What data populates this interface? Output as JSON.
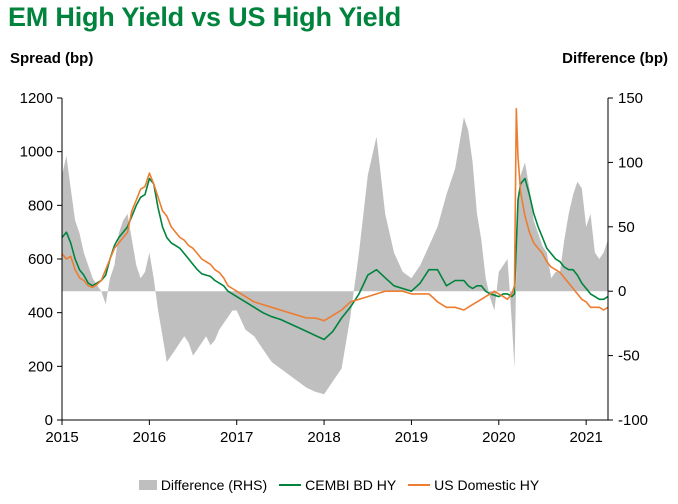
{
  "chart_data": {
    "type": "line",
    "title": "EM High Yield vs US High Yield",
    "ylabel_left": "Spread (bp)",
    "ylabel_right": "Difference (bp)",
    "ylim_left": [
      0,
      1200
    ],
    "ylim_right": [
      -100,
      150
    ],
    "yticks_left": [
      "1200",
      "1000",
      "800",
      "600",
      "400",
      "200",
      "0"
    ],
    "yticks_right": [
      "150",
      "100",
      "50",
      "0",
      "-50",
      "-100"
    ],
    "xlim": [
      2015.0,
      2021.25
    ],
    "x_tick_labels": [
      "2015",
      "2016",
      "2017",
      "2018",
      "2019",
      "2020",
      "2021"
    ],
    "x_tick_values": [
      2015,
      2016,
      2017,
      2018,
      2019,
      2020,
      2021
    ],
    "series": [
      {
        "name": "Difference (RHS)",
        "axis": "right",
        "style": "area",
        "color": "#BFBFBF",
        "x": [
          2015.0,
          2015.05,
          2015.1,
          2015.15,
          2015.2,
          2015.25,
          2015.3,
          2015.35,
          2015.4,
          2015.45,
          2015.5,
          2015.55,
          2015.6,
          2015.65,
          2015.7,
          2015.75,
          2015.8,
          2015.85,
          2015.9,
          2015.95,
          2016.0,
          2016.05,
          2016.1,
          2016.15,
          2016.2,
          2016.25,
          2016.3,
          2016.35,
          2016.4,
          2016.45,
          2016.5,
          2016.55,
          2016.6,
          2016.65,
          2016.7,
          2016.75,
          2016.8,
          2016.85,
          2016.9,
          2016.95,
          2017.0,
          2017.1,
          2017.2,
          2017.3,
          2017.4,
          2017.5,
          2017.6,
          2017.7,
          2017.8,
          2017.9,
          2018.0,
          2018.1,
          2018.2,
          2018.3,
          2018.4,
          2018.5,
          2018.6,
          2018.7,
          2018.8,
          2018.9,
          2019.0,
          2019.1,
          2019.2,
          2019.3,
          2019.4,
          2019.5,
          2019.6,
          2019.65,
          2019.7,
          2019.75,
          2019.8,
          2019.85,
          2019.9,
          2019.95,
          2020.0,
          2020.05,
          2020.1,
          2020.15,
          2020.18,
          2020.2,
          2020.22,
          2020.25,
          2020.3,
          2020.35,
          2020.4,
          2020.45,
          2020.5,
          2020.55,
          2020.6,
          2020.65,
          2020.7,
          2020.75,
          2020.8,
          2020.85,
          2020.9,
          2020.95,
          2021.0,
          2021.05,
          2021.1,
          2021.15,
          2021.2,
          2021.25
        ],
        "values": [
          90,
          105,
          80,
          55,
          45,
          30,
          20,
          10,
          5,
          0,
          -10,
          10,
          20,
          45,
          55,
          60,
          40,
          20,
          10,
          15,
          30,
          10,
          -15,
          -35,
          -55,
          -50,
          -45,
          -40,
          -35,
          -40,
          -50,
          -45,
          -40,
          -35,
          -42,
          -38,
          -30,
          -25,
          -20,
          -15,
          -15,
          -30,
          -35,
          -45,
          -55,
          -60,
          -65,
          -70,
          -75,
          -78,
          -80,
          -70,
          -60,
          -20,
          30,
          90,
          120,
          60,
          30,
          15,
          10,
          20,
          35,
          50,
          75,
          95,
          135,
          125,
          100,
          60,
          40,
          10,
          -5,
          -15,
          15,
          20,
          25,
          -25,
          -60,
          15,
          70,
          90,
          100,
          80,
          55,
          45,
          35,
          30,
          10,
          15,
          15,
          40,
          60,
          75,
          85,
          80,
          50,
          60,
          30,
          25,
          30,
          40
        ]
      },
      {
        "name": "CEMBI BD HY",
        "axis": "left",
        "style": "line",
        "color": "#00843D",
        "x": [
          2015.0,
          2015.05,
          2015.1,
          2015.15,
          2015.2,
          2015.25,
          2015.3,
          2015.35,
          2015.4,
          2015.45,
          2015.5,
          2015.55,
          2015.6,
          2015.65,
          2015.7,
          2015.75,
          2015.8,
          2015.85,
          2015.9,
          2015.95,
          2016.0,
          2016.05,
          2016.1,
          2016.15,
          2016.2,
          2016.25,
          2016.3,
          2016.35,
          2016.4,
          2016.45,
          2016.5,
          2016.55,
          2016.6,
          2016.65,
          2016.7,
          2016.75,
          2016.8,
          2016.85,
          2016.9,
          2016.95,
          2017.0,
          2017.1,
          2017.2,
          2017.3,
          2017.4,
          2017.5,
          2017.6,
          2017.7,
          2017.8,
          2017.9,
          2018.0,
          2018.1,
          2018.2,
          2018.3,
          2018.4,
          2018.5,
          2018.6,
          2018.7,
          2018.8,
          2018.9,
          2019.0,
          2019.1,
          2019.2,
          2019.3,
          2019.4,
          2019.5,
          2019.6,
          2019.65,
          2019.7,
          2019.75,
          2019.8,
          2019.85,
          2019.9,
          2019.95,
          2020.0,
          2020.05,
          2020.1,
          2020.15,
          2020.18,
          2020.2,
          2020.22,
          2020.25,
          2020.3,
          2020.35,
          2020.4,
          2020.45,
          2020.5,
          2020.55,
          2020.6,
          2020.65,
          2020.7,
          2020.75,
          2020.8,
          2020.85,
          2020.9,
          2020.95,
          2021.0,
          2021.05,
          2021.1,
          2021.15,
          2021.2,
          2021.25
        ],
        "values": [
          680,
          700,
          660,
          600,
          560,
          540,
          510,
          500,
          510,
          520,
          540,
          600,
          650,
          680,
          700,
          720,
          760,
          800,
          830,
          840,
          900,
          880,
          790,
          720,
          680,
          660,
          650,
          640,
          620,
          600,
          580,
          560,
          545,
          540,
          535,
          520,
          510,
          500,
          480,
          470,
          460,
          440,
          420,
          400,
          385,
          375,
          360,
          345,
          330,
          315,
          300,
          330,
          380,
          420,
          470,
          540,
          560,
          530,
          500,
          490,
          480,
          510,
          560,
          560,
          500,
          520,
          520,
          500,
          490,
          500,
          500,
          480,
          470,
          465,
          460,
          470,
          470,
          460,
          470,
          650,
          820,
          880,
          900,
          840,
          770,
          720,
          680,
          640,
          620,
          600,
          590,
          570,
          560,
          560,
          540,
          510,
          490,
          470,
          460,
          450,
          450,
          460
        ]
      },
      {
        "name": "US Domestic HY",
        "axis": "left",
        "style": "line",
        "color": "#ED7D31",
        "x": [
          2015.0,
          2015.05,
          2015.1,
          2015.15,
          2015.2,
          2015.25,
          2015.3,
          2015.35,
          2015.4,
          2015.45,
          2015.5,
          2015.55,
          2015.6,
          2015.65,
          2015.7,
          2015.75,
          2015.8,
          2015.85,
          2015.9,
          2015.95,
          2016.0,
          2016.05,
          2016.1,
          2016.15,
          2016.2,
          2016.25,
          2016.3,
          2016.35,
          2016.4,
          2016.45,
          2016.5,
          2016.55,
          2016.6,
          2016.65,
          2016.7,
          2016.75,
          2016.8,
          2016.85,
          2016.9,
          2016.95,
          2017.0,
          2017.1,
          2017.2,
          2017.3,
          2017.4,
          2017.5,
          2017.6,
          2017.7,
          2017.8,
          2017.9,
          2018.0,
          2018.1,
          2018.2,
          2018.3,
          2018.4,
          2018.5,
          2018.6,
          2018.7,
          2018.8,
          2018.9,
          2019.0,
          2019.1,
          2019.2,
          2019.3,
          2019.4,
          2019.5,
          2019.6,
          2019.65,
          2019.7,
          2019.75,
          2019.8,
          2019.85,
          2019.9,
          2019.95,
          2020.0,
          2020.05,
          2020.1,
          2020.15,
          2020.18,
          2020.2,
          2020.22,
          2020.25,
          2020.3,
          2020.35,
          2020.4,
          2020.45,
          2020.5,
          2020.55,
          2020.6,
          2020.65,
          2020.7,
          2020.75,
          2020.8,
          2020.85,
          2020.9,
          2020.95,
          2021.0,
          2021.05,
          2021.1,
          2021.15,
          2021.2,
          2021.25
        ],
        "values": [
          620,
          600,
          610,
          560,
          530,
          520,
          500,
          495,
          505,
          520,
          560,
          600,
          640,
          660,
          680,
          700,
          780,
          820,
          860,
          870,
          920,
          880,
          830,
          780,
          760,
          720,
          700,
          680,
          670,
          650,
          640,
          620,
          600,
          590,
          580,
          560,
          550,
          530,
          500,
          490,
          480,
          460,
          440,
          430,
          420,
          410,
          400,
          390,
          380,
          380,
          370,
          390,
          410,
          440,
          450,
          460,
          470,
          480,
          480,
          480,
          470,
          470,
          470,
          440,
          420,
          420,
          410,
          420,
          430,
          440,
          450,
          460,
          470,
          480,
          470,
          460,
          450,
          470,
          500,
          1160,
          980,
          850,
          760,
          700,
          660,
          640,
          620,
          590,
          570,
          560,
          550,
          530,
          510,
          490,
          470,
          450,
          440,
          420,
          420,
          420,
          410,
          420
        ]
      }
    ],
    "legend_position": "bottom"
  }
}
